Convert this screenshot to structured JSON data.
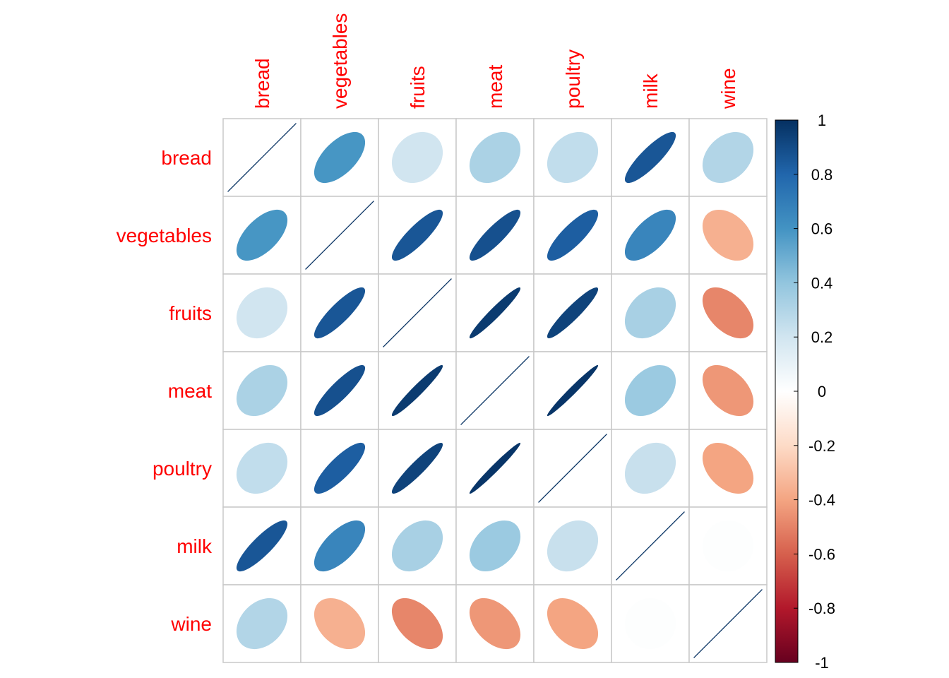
{
  "chart_data": {
    "type": "heatmap",
    "variables": [
      "bread",
      "vegetables",
      "fruits",
      "meat",
      "poultry",
      "milk",
      "wine"
    ],
    "correlation_matrix": [
      [
        1.0,
        0.59,
        0.2,
        0.32,
        0.25,
        0.86,
        0.3
      ],
      [
        0.59,
        1.0,
        0.86,
        0.88,
        0.83,
        0.66,
        -0.36
      ],
      [
        0.2,
        0.86,
        1.0,
        0.96,
        0.93,
        0.33,
        -0.49
      ],
      [
        0.32,
        0.88,
        0.96,
        1.0,
        0.98,
        0.37,
        -0.44
      ],
      [
        0.25,
        0.83,
        0.93,
        0.98,
        1.0,
        0.23,
        -0.4
      ],
      [
        0.86,
        0.66,
        0.33,
        0.37,
        0.23,
        1.0,
        0.01
      ],
      [
        0.3,
        -0.36,
        -0.49,
        -0.44,
        -0.4,
        0.01,
        1.0
      ]
    ],
    "legend": {
      "position": "right",
      "range": [
        -1,
        1
      ],
      "ticks": [
        "1",
        "0.8",
        "0.6",
        "0.4",
        "0.2",
        "0",
        "-0.2",
        "-0.4",
        "-0.6",
        "-0.8",
        "-1"
      ]
    },
    "colors": {
      "label": "#ff0000",
      "grid": "#c8c8c8",
      "scale": [
        "#67001f",
        "#b2182b",
        "#d6604d",
        "#f4a582",
        "#fddbc7",
        "#ffffff",
        "#d1e5f0",
        "#92c5de",
        "#4393c3",
        "#2166ac",
        "#053061"
      ]
    },
    "title": "",
    "xlabel": "",
    "ylabel": ""
  }
}
